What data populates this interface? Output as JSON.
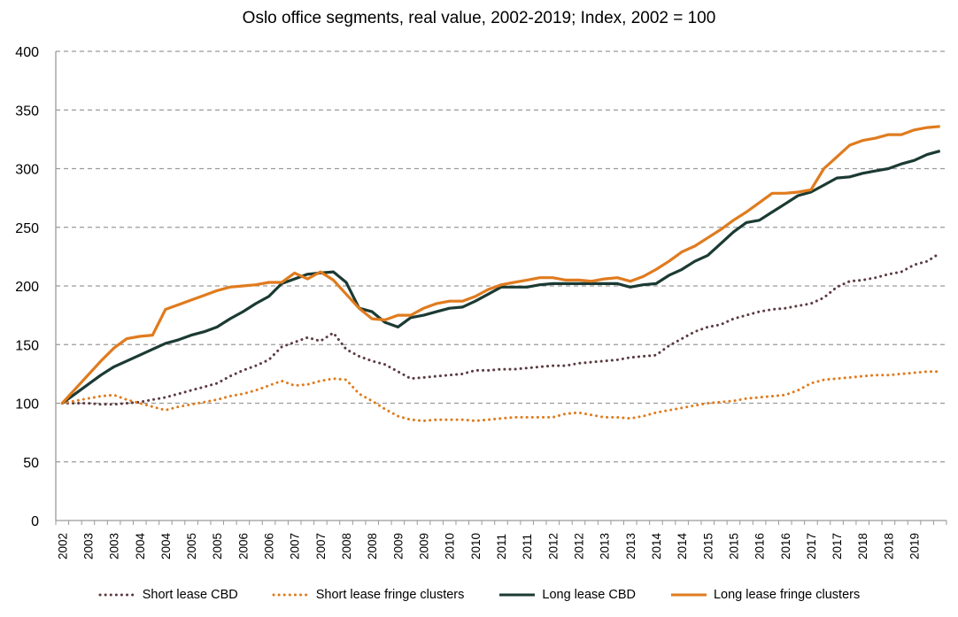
{
  "chart_data": {
    "type": "line",
    "title": "Oslo office segments, real value, 2002-2019; Index, 2002 = 100",
    "xlabel": "",
    "ylabel": "",
    "ylim": [
      0,
      400
    ],
    "y_ticks": [
      0,
      50,
      100,
      150,
      200,
      250,
      300,
      350,
      400
    ],
    "grid": "horizontal dashed",
    "legend": "bottom",
    "x_tick_labels": [
      "2002",
      "2003",
      "2003",
      "2004",
      "2004",
      "2005",
      "2005",
      "2006",
      "2006",
      "2007",
      "2007",
      "2008",
      "2008",
      "2009",
      "2009",
      "2010",
      "2010",
      "2011",
      "2011",
      "2012",
      "2012",
      "2013",
      "2013",
      "2014",
      "2014",
      "2015",
      "2015",
      "2016",
      "2016",
      "2017",
      "2017",
      "2018",
      "2018",
      "2019"
    ],
    "series": [
      {
        "name": "Short lease CBD",
        "style": "dotted",
        "color": "#5b3a40",
        "values": [
          100,
          100,
          100,
          99,
          99,
          100,
          101,
          103,
          105,
          108,
          111,
          114,
          117,
          123,
          128,
          132,
          137,
          148,
          152,
          156,
          153,
          160,
          146,
          140,
          136,
          133,
          127,
          121,
          122,
          123,
          124,
          125,
          128,
          128,
          129,
          129,
          130,
          131,
          132,
          132,
          134,
          135,
          136,
          137,
          139,
          140,
          141,
          149,
          155,
          161,
          165,
          167,
          172,
          175,
          178,
          180,
          181,
          183,
          185,
          190,
          199,
          204,
          205,
          207,
          210,
          212,
          218,
          221,
          228
        ]
      },
      {
        "name": "Short lease fringe clusters",
        "style": "dotted",
        "color": "#e07b1e",
        "values": [
          100,
          102,
          104,
          106,
          107,
          103,
          100,
          97,
          94,
          97,
          99,
          101,
          103,
          106,
          108,
          111,
          115,
          119,
          115,
          116,
          119,
          121,
          120,
          108,
          102,
          95,
          89,
          86,
          85,
          86,
          86,
          86,
          85,
          86,
          87,
          88,
          88,
          88,
          88,
          91,
          92,
          90,
          88,
          88,
          87,
          89,
          92,
          94,
          96,
          98,
          100,
          101,
          102,
          104,
          105,
          106,
          107,
          111,
          117,
          120,
          121,
          122,
          123,
          124,
          124,
          125,
          126,
          127,
          127
        ]
      },
      {
        "name": "Long lease CBD",
        "style": "solid",
        "color": "#1b3a33",
        "values": [
          100,
          108,
          116,
          124,
          131,
          136,
          141,
          146,
          151,
          154,
          158,
          161,
          165,
          172,
          178,
          185,
          191,
          202,
          206,
          210,
          211,
          212,
          203,
          181,
          178,
          169,
          165,
          173,
          175,
          178,
          181,
          182,
          187,
          193,
          199,
          199,
          199,
          201,
          202,
          202,
          202,
          202,
          202,
          202,
          199,
          201,
          202,
          209,
          214,
          221,
          226,
          236,
          246,
          254,
          256,
          263,
          270,
          277,
          280,
          286,
          292,
          293,
          296,
          298,
          300,
          304,
          307,
          312,
          315
        ]
      },
      {
        "name": "Long lease fringe clusters",
        "style": "solid",
        "color": "#e07b1e",
        "values": [
          100,
          112,
          124,
          136,
          147,
          155,
          157,
          158,
          180,
          184,
          188,
          192,
          196,
          199,
          200,
          201,
          203,
          203,
          211,
          206,
          212,
          205,
          193,
          181,
          172,
          171,
          175,
          175,
          181,
          185,
          187,
          187,
          191,
          197,
          201,
          203,
          205,
          207,
          207,
          205,
          205,
          204,
          206,
          207,
          204,
          208,
          214,
          221,
          229,
          234,
          241,
          248,
          256,
          263,
          271,
          279,
          279,
          280,
          282,
          300,
          310,
          320,
          324,
          326,
          329,
          329,
          333,
          335,
          336
        ]
      }
    ]
  }
}
